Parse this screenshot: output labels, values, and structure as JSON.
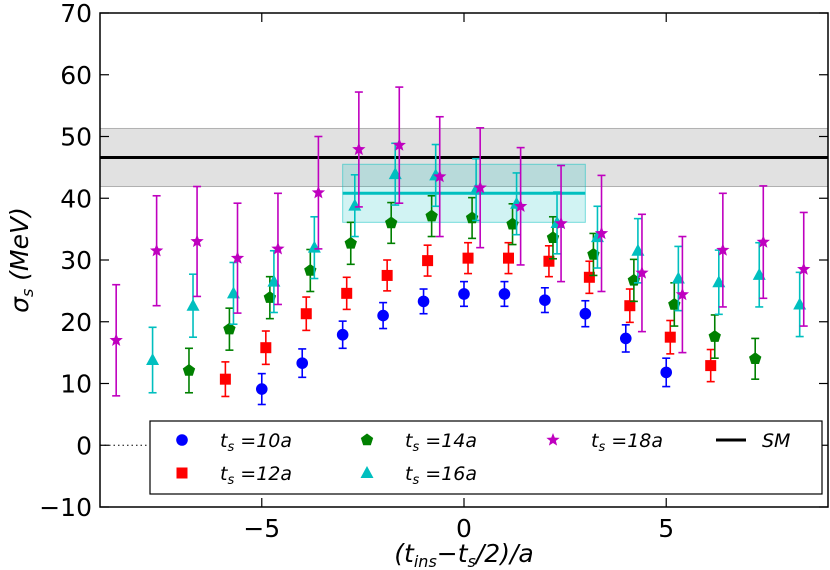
{
  "chart_data": {
    "type": "scatter",
    "title": "",
    "xlabel": "(t_ins−t_s/2)/a",
    "ylabel": "σ_s (MeV)",
    "xlim": [
      -9,
      9
    ],
    "ylim": [
      -10,
      70
    ],
    "x_ticks": [
      -5,
      0,
      5
    ],
    "x_tick_labels": [
      "−5",
      "0",
      "5"
    ],
    "y_ticks": [
      -10,
      0,
      10,
      20,
      30,
      40,
      50,
      60,
      70
    ],
    "y_tick_labels": [
      "−10",
      "0",
      "10",
      "20",
      "30",
      "40",
      "50",
      "60",
      "70"
    ],
    "legend_position": "bottom",
    "series": [
      {
        "name": "t_s =10a",
        "ts": "10a",
        "marker": "circle",
        "color": "#0000ff",
        "points": [
          {
            "x": -5,
            "y": 9.1,
            "err": 2.5
          },
          {
            "x": -4,
            "y": 13.3,
            "err": 2.3
          },
          {
            "x": -3,
            "y": 17.9,
            "err": 2.2
          },
          {
            "x": -2,
            "y": 21.0,
            "err": 2.1
          },
          {
            "x": -1,
            "y": 23.3,
            "err": 2.0
          },
          {
            "x": 0,
            "y": 24.5,
            "err": 2.0
          },
          {
            "x": 1,
            "y": 24.5,
            "err": 2.0
          },
          {
            "x": 2,
            "y": 23.5,
            "err": 2.0
          },
          {
            "x": 3,
            "y": 21.3,
            "err": 2.1
          },
          {
            "x": 4,
            "y": 17.3,
            "err": 2.2
          },
          {
            "x": 5,
            "y": 11.8,
            "err": 2.3
          }
        ]
      },
      {
        "name": "t_s =12a",
        "ts": "12a",
        "marker": "square",
        "color": "#ff0000",
        "points": [
          {
            "x": -5.9,
            "y": 10.7,
            "err": 2.8
          },
          {
            "x": -4.9,
            "y": 15.8,
            "err": 2.7
          },
          {
            "x": -3.9,
            "y": 21.3,
            "err": 2.7
          },
          {
            "x": -2.9,
            "y": 24.6,
            "err": 2.6
          },
          {
            "x": -1.9,
            "y": 27.5,
            "err": 2.5
          },
          {
            "x": -0.9,
            "y": 29.9,
            "err": 2.5
          },
          {
            "x": 0.1,
            "y": 30.3,
            "err": 2.5
          },
          {
            "x": 1.1,
            "y": 30.3,
            "err": 2.5
          },
          {
            "x": 2.1,
            "y": 29.8,
            "err": 2.5
          },
          {
            "x": 3.1,
            "y": 27.2,
            "err": 2.6
          },
          {
            "x": 4.1,
            "y": 22.6,
            "err": 2.7
          },
          {
            "x": 5.1,
            "y": 17.5,
            "err": 2.7
          },
          {
            "x": 6.1,
            "y": 12.9,
            "err": 2.6
          }
        ]
      },
      {
        "name": "t_s =14a",
        "ts": "14a",
        "marker": "pentagon",
        "color": "#008000",
        "points": [
          {
            "x": -6.8,
            "y": 12.1,
            "err": 3.6
          },
          {
            "x": -5.8,
            "y": 18.8,
            "err": 3.4
          },
          {
            "x": -4.8,
            "y": 23.9,
            "err": 3.4
          },
          {
            "x": -3.8,
            "y": 28.3,
            "err": 3.4
          },
          {
            "x": -2.8,
            "y": 32.7,
            "err": 3.4
          },
          {
            "x": -1.8,
            "y": 36.0,
            "err": 3.3
          },
          {
            "x": -0.8,
            "y": 37.1,
            "err": 3.3
          },
          {
            "x": 0.2,
            "y": 36.8,
            "err": 3.3
          },
          {
            "x": 1.2,
            "y": 35.8,
            "err": 3.3
          },
          {
            "x": 2.2,
            "y": 33.6,
            "err": 3.4
          },
          {
            "x": 3.2,
            "y": 30.9,
            "err": 3.4
          },
          {
            "x": 4.2,
            "y": 26.7,
            "err": 3.4
          },
          {
            "x": 5.2,
            "y": 22.8,
            "err": 3.5
          },
          {
            "x": 6.2,
            "y": 17.6,
            "err": 3.5
          },
          {
            "x": 7.2,
            "y": 14.0,
            "err": 3.3
          }
        ]
      },
      {
        "name": "t_s =16a",
        "ts": "16a",
        "marker": "triangle",
        "color": "#00bfbf",
        "points": [
          {
            "x": -7.7,
            "y": 13.8,
            "err": 5.3
          },
          {
            "x": -6.7,
            "y": 22.6,
            "err": 5.1
          },
          {
            "x": -5.7,
            "y": 24.6,
            "err": 5.0
          },
          {
            "x": -4.7,
            "y": 26.5,
            "err": 5.0
          },
          {
            "x": -3.7,
            "y": 32.0,
            "err": 5.0
          },
          {
            "x": -2.7,
            "y": 38.8,
            "err": 5.0
          },
          {
            "x": -1.7,
            "y": 43.9,
            "err": 5.0
          },
          {
            "x": -0.7,
            "y": 43.7,
            "err": 5.0
          },
          {
            "x": 0.3,
            "y": 41.4,
            "err": 5.0
          },
          {
            "x": 1.3,
            "y": 39.1,
            "err": 5.0
          },
          {
            "x": 2.3,
            "y": 36.0,
            "err": 5.0
          },
          {
            "x": 3.3,
            "y": 33.7,
            "err": 5.0
          },
          {
            "x": 4.3,
            "y": 31.5,
            "err": 5.2
          },
          {
            "x": 5.3,
            "y": 27.0,
            "err": 5.2
          },
          {
            "x": 6.3,
            "y": 26.4,
            "err": 5.2
          },
          {
            "x": 7.3,
            "y": 27.6,
            "err": 5.2
          },
          {
            "x": 8.3,
            "y": 22.8,
            "err": 5.2
          }
        ]
      },
      {
        "name": "t_s =18a",
        "ts": "18a",
        "marker": "star",
        "color": "#bf00bf",
        "points": [
          {
            "x": -8.6,
            "y": 17.0,
            "err": 9.0
          },
          {
            "x": -7.6,
            "y": 31.5,
            "err": 8.9
          },
          {
            "x": -6.6,
            "y": 33.0,
            "err": 8.9
          },
          {
            "x": -5.6,
            "y": 30.3,
            "err": 8.9
          },
          {
            "x": -4.6,
            "y": 31.8,
            "err": 9.0
          },
          {
            "x": -3.6,
            "y": 40.9,
            "err": 9.1
          },
          {
            "x": -2.6,
            "y": 47.9,
            "err": 9.3
          },
          {
            "x": -1.6,
            "y": 48.6,
            "err": 9.4
          },
          {
            "x": -0.6,
            "y": 43.5,
            "err": 9.7
          },
          {
            "x": 0.4,
            "y": 41.7,
            "err": 9.7
          },
          {
            "x": 1.4,
            "y": 38.7,
            "err": 9.5
          },
          {
            "x": 2.4,
            "y": 35.9,
            "err": 9.4
          },
          {
            "x": 3.4,
            "y": 34.3,
            "err": 9.4
          },
          {
            "x": 4.4,
            "y": 27.9,
            "err": 9.5
          },
          {
            "x": 5.4,
            "y": 24.4,
            "err": 9.4
          },
          {
            "x": 6.4,
            "y": 31.6,
            "err": 9.2
          },
          {
            "x": 7.4,
            "y": 32.9,
            "err": 9.1
          },
          {
            "x": 8.4,
            "y": 28.5,
            "err": 9.2
          }
        ]
      }
    ],
    "fit_band": {
      "x_start": -3,
      "x_end": 3,
      "value": 40.8,
      "err": 4.7,
      "color": "#00bfbf"
    },
    "sm_band": {
      "name": "SM",
      "value": 46.6,
      "err": 4.7,
      "color": "#000000"
    },
    "zero_line": {
      "y": 0,
      "x_start": -9,
      "x_end": -7.5,
      "style": "dotted"
    }
  }
}
